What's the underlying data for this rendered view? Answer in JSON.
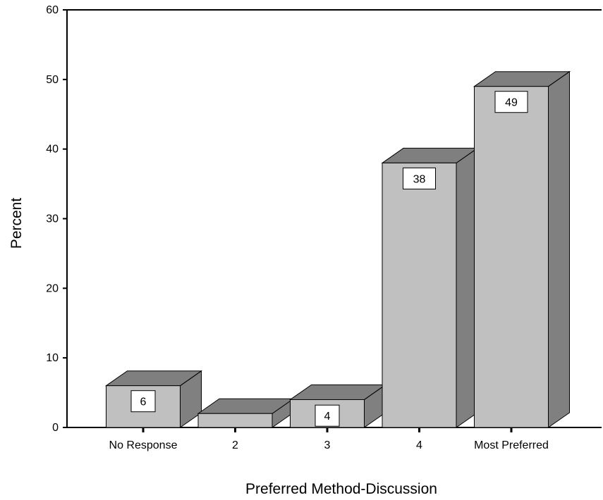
{
  "chart_data": {
    "type": "bar",
    "style": "3d",
    "xlabel": "Preferred Method-Discussion",
    "ylabel": "Percent",
    "categories": [
      "No Response",
      "2",
      "3",
      "4",
      "Most Preferred"
    ],
    "values": [
      6,
      2,
      4,
      38,
      49
    ],
    "data_labels": [
      "6",
      "",
      "4",
      "38",
      "49"
    ],
    "ylim": [
      0,
      60
    ],
    "yticks": [
      0,
      10,
      20,
      30,
      40,
      50,
      60
    ],
    "grid": false,
    "legend": "none",
    "colors": {
      "bar_front": "#c0c0c0",
      "bar_top": "#7f7f7f",
      "bar_side": "#808080",
      "axis": "#000000",
      "label_box": "#ffffff"
    }
  }
}
